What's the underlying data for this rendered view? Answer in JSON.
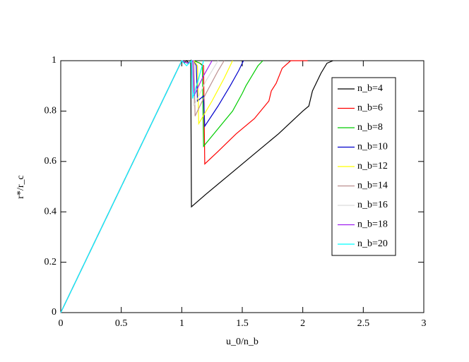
{
  "chart_data": {
    "type": "line",
    "xlabel": "u_0/n_b",
    "ylabel": "r*/r_c",
    "xlim": [
      0,
      3
    ],
    "ylim": [
      0,
      1
    ],
    "xticks": [
      0,
      0.5,
      1,
      1.5,
      2,
      2.5,
      3
    ],
    "yticks": [
      0,
      0.2,
      0.4,
      0.6,
      0.8,
      1
    ],
    "legend": "upper-right",
    "series": [
      {
        "name": "n_b=4",
        "color": "#000000",
        "x": [
          0,
          1,
          1.02,
          1.04,
          1.06,
          1.074,
          1.08,
          1.2,
          1.4,
          1.6,
          1.8,
          2.0,
          2.05,
          2.08,
          2.1,
          2.15,
          2.2,
          2.25
        ],
        "values": [
          0,
          1,
          0.99,
          1,
          0.99,
          1,
          0.42,
          0.47,
          0.55,
          0.63,
          0.71,
          0.8,
          0.82,
          0.88,
          0.9,
          0.95,
          0.99,
          1
        ]
      },
      {
        "name": "n_b=6",
        "color": "#ff0000",
        "x": [
          0,
          1,
          1.05,
          1.1,
          1.15,
          1.18,
          1.19,
          1.3,
          1.45,
          1.6,
          1.72,
          1.74,
          1.78,
          1.83,
          1.9,
          2.04
        ],
        "values": [
          0,
          1,
          0.99,
          1,
          0.99,
          0.98,
          0.59,
          0.64,
          0.71,
          0.77,
          0.84,
          0.88,
          0.91,
          0.97,
          1,
          1
        ]
      },
      {
        "name": "n_b=8",
        "color": "#00cc00",
        "x": [
          0,
          1,
          1.05,
          1.1,
          1.15,
          1.17,
          1.18,
          1.3,
          1.42,
          1.5,
          1.53,
          1.58,
          1.63,
          1.67
        ],
        "values": [
          0,
          1,
          0.99,
          1,
          0.99,
          0.98,
          0.66,
          0.73,
          0.8,
          0.87,
          0.9,
          0.94,
          0.98,
          1
        ]
      },
      {
        "name": "n_b=10",
        "color": "#0000cc",
        "x": [
          0,
          1,
          1.05,
          1.1,
          1.12,
          1.13,
          1.18,
          1.19,
          1.3,
          1.4,
          1.47,
          1.51
        ],
        "values": [
          0,
          1,
          0.99,
          1,
          0.98,
          0.84,
          0.86,
          0.74,
          0.82,
          0.9,
          0.96,
          1
        ]
      },
      {
        "name": "n_b=12",
        "color": "#ffff00",
        "x": [
          0,
          1,
          1.05,
          1.1,
          1.13,
          1.14,
          1.25,
          1.35,
          1.42
        ],
        "values": [
          0,
          1,
          0.99,
          1,
          0.98,
          0.75,
          0.84,
          0.93,
          1
        ]
      },
      {
        "name": "n_b=14",
        "color": "#bc8f8f",
        "x": [
          0,
          1,
          1.05,
          1.1,
          1.11,
          1.2,
          1.3,
          1.35
        ],
        "values": [
          0,
          1,
          0.99,
          1,
          0.78,
          0.87,
          0.96,
          1
        ]
      },
      {
        "name": "n_b=16",
        "color": "#dcdcdc",
        "x": [
          0,
          1,
          1.05,
          1.09,
          1.1,
          1.2,
          1.3
        ],
        "values": [
          0,
          1,
          0.99,
          1,
          0.82,
          0.92,
          1
        ]
      },
      {
        "name": "n_b=18",
        "color": "#a020f0",
        "x": [
          0,
          1,
          1.05,
          1.09,
          1.1,
          1.18,
          1.25
        ],
        "values": [
          0,
          1,
          0.99,
          1,
          0.86,
          0.94,
          1
        ]
      },
      {
        "name": "n_b=20",
        "color": "#00ffff",
        "x": [
          0,
          1,
          1.04,
          1.08,
          1.09,
          1.14,
          1.18
        ],
        "values": [
          0,
          1,
          0.98,
          1,
          0.85,
          0.93,
          1
        ]
      }
    ]
  }
}
